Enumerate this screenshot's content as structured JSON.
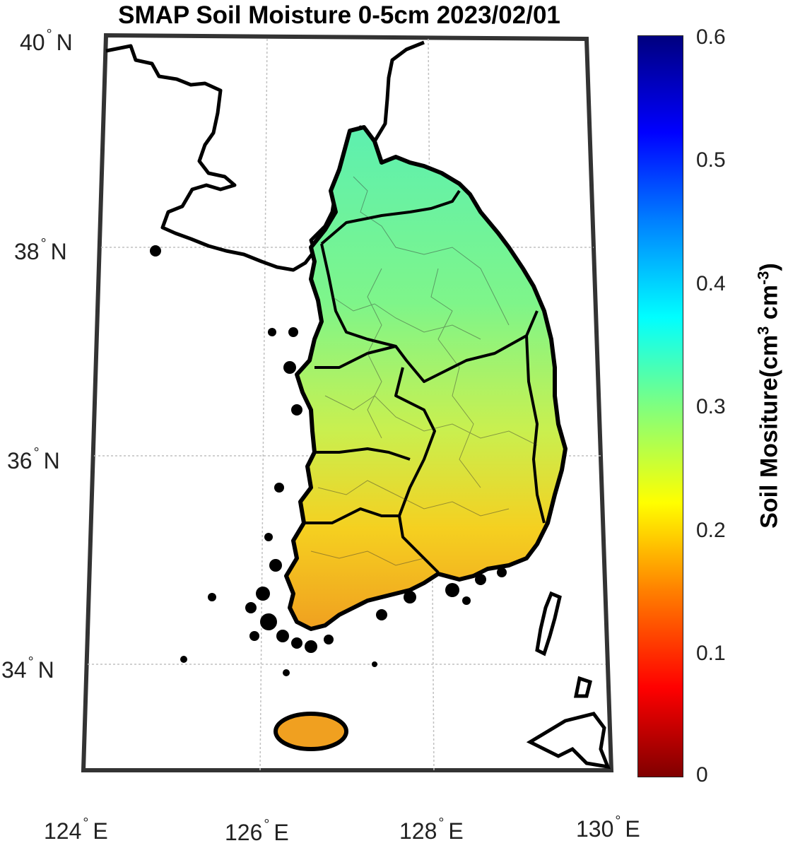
{
  "title": "SMAP Soil Moisture 0-5cm 2023/02/01",
  "latitude_labels": [
    {
      "value": "40",
      "hemisphere": "N"
    },
    {
      "value": "38",
      "hemisphere": "N"
    },
    {
      "value": "36",
      "hemisphere": "N"
    },
    {
      "value": "34",
      "hemisphere": "N"
    }
  ],
  "longitude_labels": [
    {
      "value": "124",
      "hemisphere": "E"
    },
    {
      "value": "126",
      "hemisphere": "E"
    },
    {
      "value": "128",
      "hemisphere": "E"
    },
    {
      "value": "130",
      "hemisphere": "E"
    }
  ],
  "colorbar": {
    "label_main": "Soil Mositure(cm",
    "label_sup1": "3",
    "label_mid": " cm",
    "label_sup2": "-3",
    "label_end": ")",
    "ticks": [
      "0.6",
      "0.5",
      "0.4",
      "0.3",
      "0.2",
      "0.1",
      "0"
    ],
    "colormap": "jet",
    "range": [
      0,
      0.6
    ]
  },
  "map": {
    "land_color_north": "#5ff0a0",
    "land_color_south": "#f0a020",
    "coast_color": "#000000",
    "grid_color": "#bbbbbb"
  }
}
